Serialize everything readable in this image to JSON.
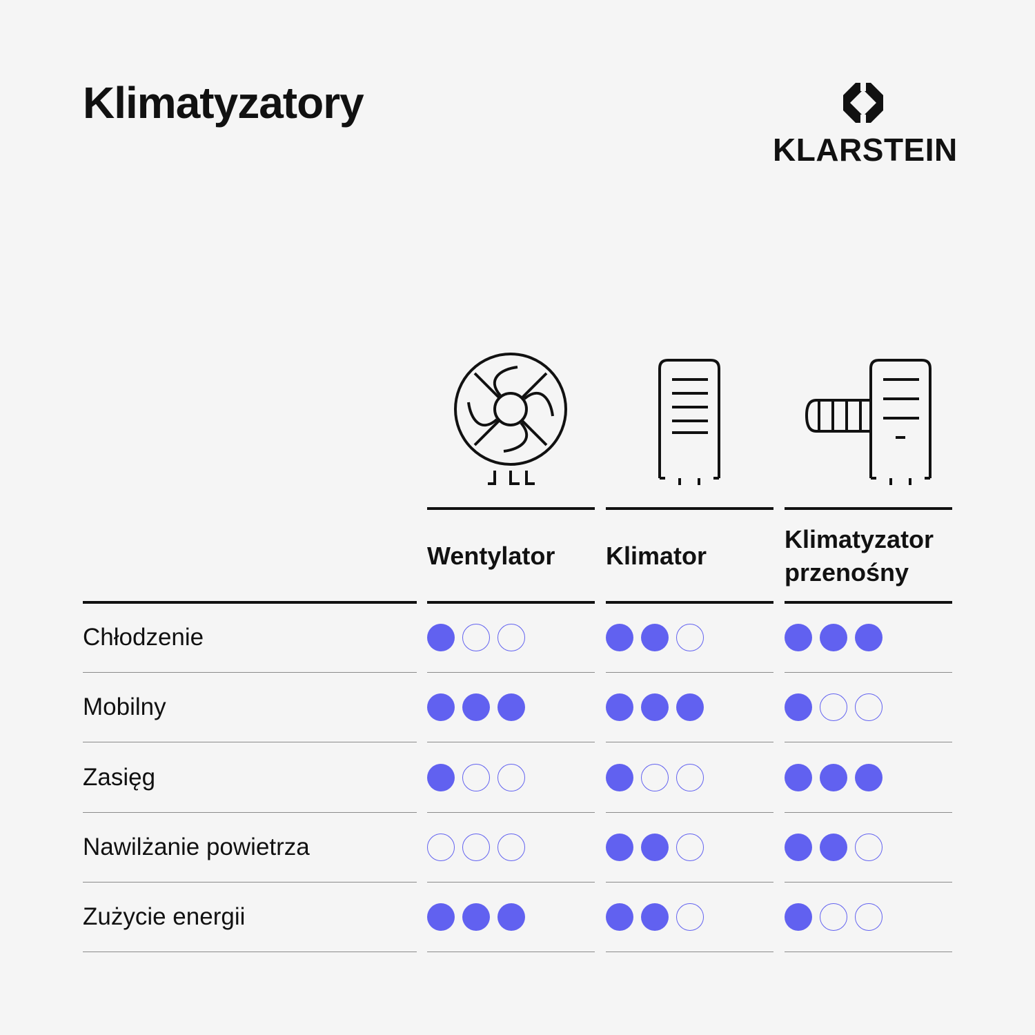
{
  "title": "Klimatyzatory",
  "brand": {
    "name": "KLARSTEIN",
    "mark_icon": "klarstein-logo-icon"
  },
  "colors": {
    "dot_filled": "#6161f0",
    "dot_outline": "#6161f0",
    "text": "#111111",
    "background": "#f5f5f5"
  },
  "max_score": 3,
  "columns": [
    {
      "label": "Wentylator",
      "icon": "fan-icon"
    },
    {
      "label": "Klimator",
      "icon": "air-cooler-icon"
    },
    {
      "label": "Klimatyzator\nprzenośny",
      "icon": "portable-air-conditioner-icon"
    }
  ],
  "rows": [
    {
      "label": "Chłodzenie",
      "scores": [
        1,
        2,
        3
      ]
    },
    {
      "label": "Mobilny",
      "scores": [
        3,
        3,
        1
      ]
    },
    {
      "label": "Zasięg",
      "scores": [
        1,
        1,
        3
      ]
    },
    {
      "label": "Nawilżanie powietrza",
      "scores": [
        0,
        2,
        2
      ]
    },
    {
      "label": "Zużycie energii",
      "scores": [
        3,
        2,
        1
      ]
    }
  ]
}
